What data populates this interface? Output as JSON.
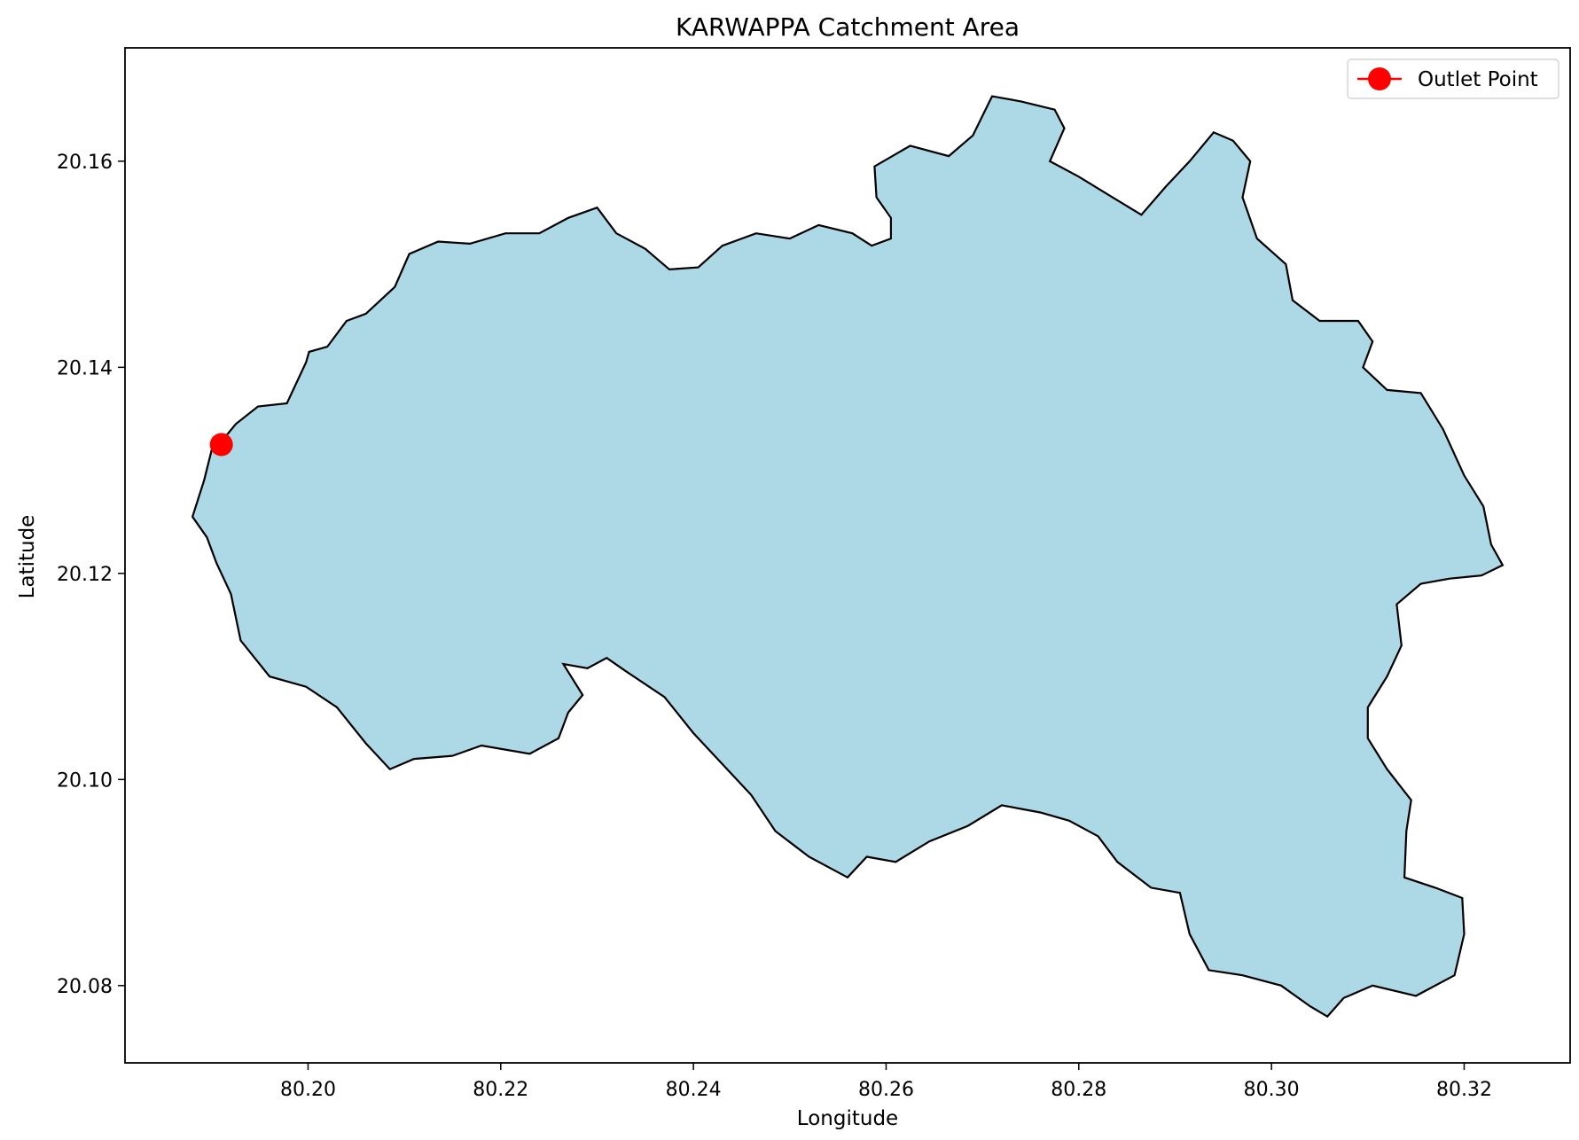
{
  "chart_data": {
    "type": "map",
    "title": "KARWAPPA Catchment Area",
    "xlabel": "Longitude",
    "ylabel": "Latitude",
    "xlim": [
      80.181,
      80.331
    ],
    "ylim": [
      20.0725,
      20.171
    ],
    "x_ticks": [
      "80.20",
      "80.22",
      "80.24",
      "80.26",
      "80.28",
      "80.30",
      "80.32"
    ],
    "y_ticks": [
      "20.08",
      "20.10",
      "20.12",
      "20.14",
      "20.16"
    ],
    "grid": false,
    "legend": {
      "position": "top-right",
      "entries": [
        {
          "label": "Outlet Point",
          "color": "#ff0000"
        }
      ]
    },
    "catchment": {
      "fill": "#add8e6",
      "edge": "#000000",
      "boundary": [
        [
          80.191,
          20.1328
        ],
        [
          80.1925,
          20.1345
        ],
        [
          80.1948,
          20.1362
        ],
        [
          80.1978,
          20.1365
        ],
        [
          80.1998,
          20.1405
        ],
        [
          80.2001,
          20.1415
        ],
        [
          80.202,
          20.142
        ],
        [
          80.204,
          20.1445
        ],
        [
          80.206,
          20.1452
        ],
        [
          80.209,
          20.1478
        ],
        [
          80.2105,
          20.151
        ],
        [
          80.2135,
          20.1522
        ],
        [
          80.2168,
          20.152
        ],
        [
          80.2205,
          20.153
        ],
        [
          80.224,
          20.153
        ],
        [
          80.227,
          20.1545
        ],
        [
          80.23,
          20.1555
        ],
        [
          80.232,
          20.153
        ],
        [
          80.235,
          20.1515
        ],
        [
          80.2375,
          20.1495
        ],
        [
          80.2405,
          20.1497
        ],
        [
          80.243,
          20.1518
        ],
        [
          80.2465,
          20.153
        ],
        [
          80.25,
          20.1525
        ],
        [
          80.253,
          20.1538
        ],
        [
          80.2565,
          20.153
        ],
        [
          80.2585,
          20.1518
        ],
        [
          80.2605,
          20.1525
        ],
        [
          80.2605,
          20.1545
        ],
        [
          80.259,
          20.1565
        ],
        [
          80.2588,
          20.1595
        ],
        [
          80.2625,
          20.1615
        ],
        [
          80.2665,
          20.1605
        ],
        [
          80.269,
          20.1625
        ],
        [
          80.271,
          20.1663
        ],
        [
          80.274,
          20.1658
        ],
        [
          80.2775,
          20.165
        ],
        [
          80.2785,
          20.1632
        ],
        [
          80.277,
          20.16
        ],
        [
          80.28,
          20.1585
        ],
        [
          80.2835,
          20.1565
        ],
        [
          80.2865,
          20.1548
        ],
        [
          80.289,
          20.1575
        ],
        [
          80.2915,
          20.16
        ],
        [
          80.294,
          20.1628
        ],
        [
          80.296,
          20.162
        ],
        [
          80.2978,
          20.16
        ],
        [
          80.297,
          20.1565
        ],
        [
          80.2985,
          20.1525
        ],
        [
          80.3015,
          20.15
        ],
        [
          80.3022,
          20.1465
        ],
        [
          80.305,
          20.1445
        ],
        [
          80.309,
          20.1445
        ],
        [
          80.3105,
          20.1425
        ],
        [
          80.3095,
          20.14
        ],
        [
          80.312,
          20.1378
        ],
        [
          80.3155,
          20.1375
        ],
        [
          80.3178,
          20.134
        ],
        [
          80.32,
          20.1295
        ],
        [
          80.322,
          20.1265
        ],
        [
          80.3228,
          20.1228
        ],
        [
          80.324,
          20.1208
        ],
        [
          80.3218,
          20.1198
        ],
        [
          80.3185,
          20.1195
        ],
        [
          80.3155,
          20.119
        ],
        [
          80.313,
          20.117
        ],
        [
          80.3135,
          20.113
        ],
        [
          80.312,
          20.11
        ],
        [
          80.31,
          20.107
        ],
        [
          80.31,
          20.104
        ],
        [
          80.312,
          20.101
        ],
        [
          80.3145,
          20.098
        ],
        [
          80.314,
          20.095
        ],
        [
          80.3138,
          20.0905
        ],
        [
          80.317,
          20.0895
        ],
        [
          80.3198,
          20.0885
        ],
        [
          80.32,
          20.085
        ],
        [
          80.319,
          20.081
        ],
        [
          80.315,
          20.079
        ],
        [
          80.3105,
          20.08
        ],
        [
          80.3075,
          20.0788
        ],
        [
          80.3058,
          20.077
        ],
        [
          80.304,
          20.078
        ],
        [
          80.301,
          20.08
        ],
        [
          80.297,
          20.081
        ],
        [
          80.2935,
          20.0815
        ],
        [
          80.2915,
          20.085
        ],
        [
          80.2905,
          20.089
        ],
        [
          80.2875,
          20.0895
        ],
        [
          80.284,
          20.092
        ],
        [
          80.282,
          20.0945
        ],
        [
          80.279,
          20.096
        ],
        [
          80.276,
          20.0968
        ],
        [
          80.272,
          20.0975
        ],
        [
          80.2685,
          20.0955
        ],
        [
          80.2645,
          20.094
        ],
        [
          80.261,
          20.092
        ],
        [
          80.258,
          20.0925
        ],
        [
          80.256,
          20.0905
        ],
        [
          80.252,
          20.0925
        ],
        [
          80.2485,
          20.095
        ],
        [
          80.246,
          20.0985
        ],
        [
          80.243,
          20.1015
        ],
        [
          80.24,
          20.1045
        ],
        [
          80.237,
          20.108
        ],
        [
          80.233,
          20.1105
        ],
        [
          80.231,
          20.1118
        ],
        [
          80.229,
          20.1108
        ],
        [
          80.2265,
          20.1112
        ],
        [
          80.2285,
          20.1082
        ],
        [
          80.227,
          20.1065
        ],
        [
          80.226,
          20.104
        ],
        [
          80.223,
          20.1025
        ],
        [
          80.218,
          20.1033
        ],
        [
          80.215,
          20.1023
        ],
        [
          80.211,
          20.102
        ],
        [
          80.2085,
          20.101
        ],
        [
          80.206,
          20.1035
        ],
        [
          80.203,
          20.107
        ],
        [
          80.1998,
          20.109
        ],
        [
          80.196,
          20.11
        ],
        [
          80.193,
          20.1135
        ],
        [
          80.192,
          20.118
        ],
        [
          80.1905,
          20.121
        ],
        [
          80.1895,
          20.1235
        ],
        [
          80.188,
          20.1255
        ],
        [
          80.1892,
          20.129
        ],
        [
          80.19,
          20.132
        ]
      ]
    },
    "outlet": {
      "label": "Outlet Point",
      "lon": 80.191,
      "lat": 20.1325,
      "color": "#ff0000"
    }
  }
}
